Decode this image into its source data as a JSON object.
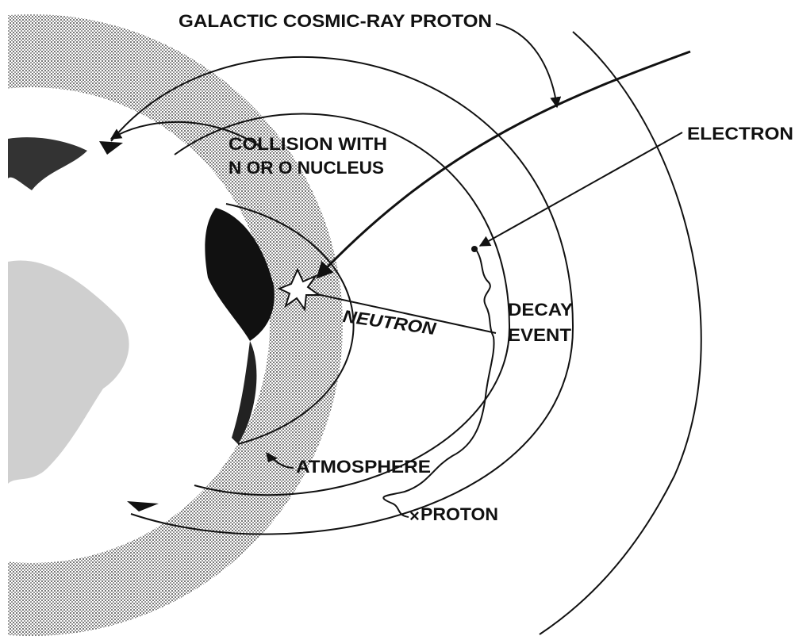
{
  "labels": {
    "cosmic_ray": "GALACTIC COSMIC-RAY PROTON",
    "electron": "ELECTRON",
    "collision": [
      "COLLISION WITH",
      "N OR O NUCLEUS"
    ],
    "decay": [
      "DECAY",
      "EVENT"
    ],
    "neutron": "NEUTRON",
    "atmosphere": "ATMOSPHERE",
    "proton": "PROTON"
  }
}
